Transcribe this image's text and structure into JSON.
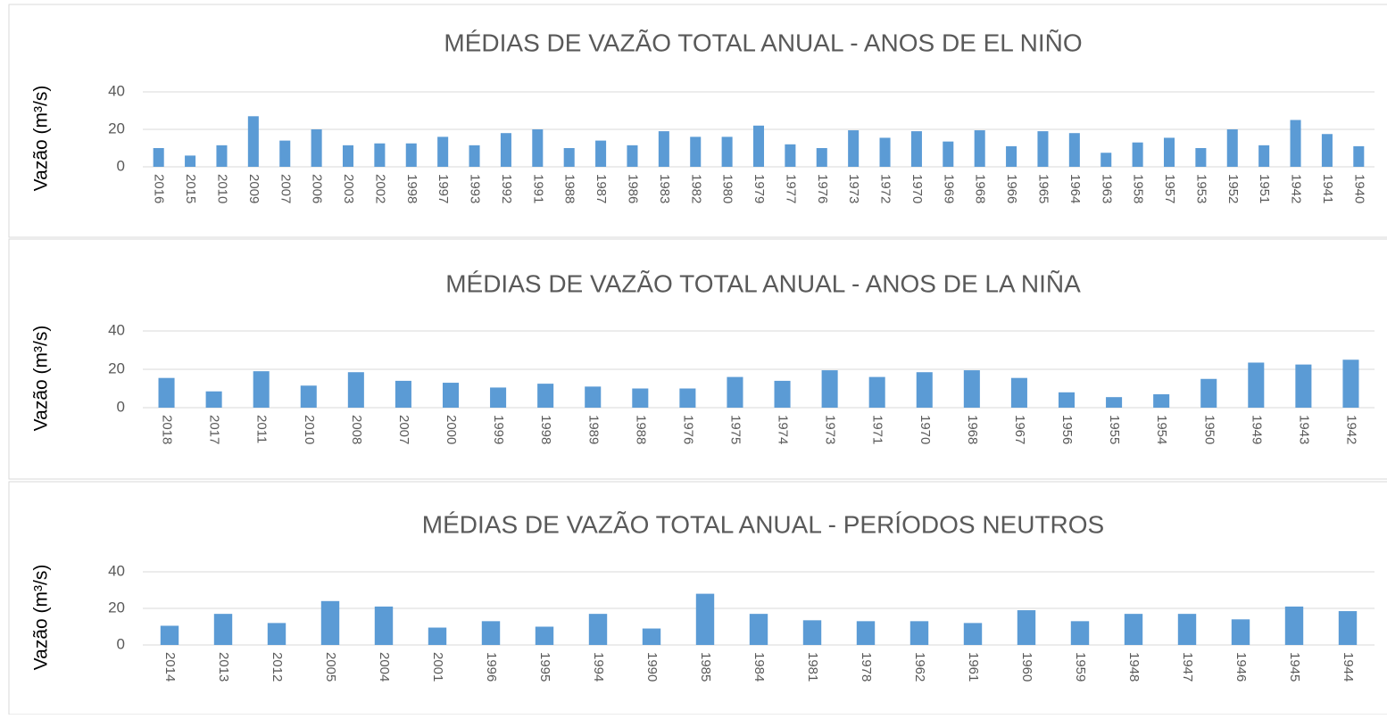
{
  "chart_data": [
    {
      "type": "bar",
      "title": "MÉDIAS DE VAZÃO TOTAL ANUAL - ANOS DE EL NIÑO",
      "ylabel": "Vazão (m³/s)",
      "categories": [
        "2016",
        "2015",
        "2010",
        "2009",
        "2007",
        "2006",
        "2003",
        "2002",
        "1998",
        "1997",
        "1993",
        "1992",
        "1991",
        "1988",
        "1987",
        "1986",
        "1983",
        "1982",
        "1980",
        "1979",
        "1977",
        "1976",
        "1973",
        "1972",
        "1970",
        "1969",
        "1968",
        "1966",
        "1965",
        "1964",
        "1963",
        "1958",
        "1957",
        "1953",
        "1952",
        "1951",
        "1942",
        "1941",
        "1940"
      ],
      "values": [
        10,
        6,
        11.5,
        27,
        14,
        20,
        11.5,
        12.5,
        12.5,
        16,
        11.5,
        18,
        20,
        10,
        14,
        11.5,
        19,
        16,
        16,
        22,
        12,
        10,
        19.5,
        15.5,
        19,
        13.5,
        19.5,
        11,
        19,
        18,
        7.5,
        13,
        15.5,
        10,
        20,
        11.5,
        25,
        17.5,
        11
      ],
      "color": "#5b9bd5",
      "ylim": [
        0,
        40
      ],
      "yticks": [
        0,
        20,
        40
      ],
      "grid": true
    },
    {
      "type": "bar",
      "title": "MÉDIAS DE VAZÃO TOTAL ANUAL - ANOS DE LA NIÑA",
      "ylabel": "Vazão (m³/s)",
      "categories": [
        "2018",
        "2017",
        "2011",
        "2010",
        "2008",
        "2007",
        "2000",
        "1999",
        "1998",
        "1989",
        "1988",
        "1976",
        "1975",
        "1974",
        "1973",
        "1971",
        "1970",
        "1968",
        "1967",
        "1956",
        "1955",
        "1954",
        "1950",
        "1949",
        "1943",
        "1942"
      ],
      "values": [
        15.5,
        8.5,
        19,
        11.5,
        18.5,
        14,
        13,
        10.5,
        12.5,
        11,
        10,
        10,
        16,
        14,
        19.5,
        16,
        18.5,
        19.5,
        15.5,
        8,
        5.5,
        7,
        15,
        23.5,
        22.5,
        25
      ],
      "color": "#5b9bd5",
      "ylim": [
        0,
        40
      ],
      "yticks": [
        0,
        20,
        40
      ],
      "grid": true
    },
    {
      "type": "bar",
      "title": "MÉDIAS DE VAZÃO TOTAL ANUAL - PERÍODOS NEUTROS",
      "ylabel": "Vazão (m³/s)",
      "categories": [
        "2014",
        "2013",
        "2012",
        "2005",
        "2004",
        "2001",
        "1996",
        "1995",
        "1994",
        "1990",
        "1985",
        "1984",
        "1981",
        "1978",
        "1962",
        "1961",
        "1960",
        "1959",
        "1948",
        "1947",
        "1946",
        "1945",
        "1944"
      ],
      "values": [
        10.5,
        17,
        12,
        24,
        21,
        9.5,
        13,
        10,
        17,
        9,
        28,
        17,
        13.5,
        13,
        13,
        12,
        19,
        13,
        17,
        17,
        14,
        21,
        18.5
      ],
      "color": "#5b9bd5",
      "ylim": [
        0,
        40
      ],
      "yticks": [
        0,
        20,
        40
      ],
      "grid": true
    }
  ]
}
